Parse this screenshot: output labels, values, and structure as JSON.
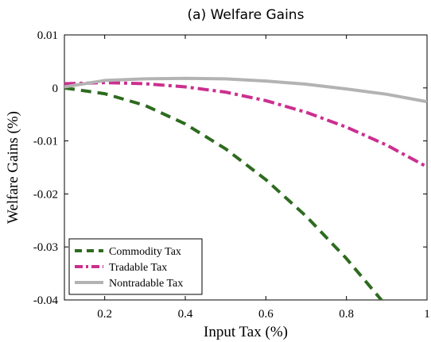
{
  "chart_data": {
    "type": "line",
    "title": "(a) Welfare Gains",
    "xlabel": "Input Tax (%)",
    "ylabel": "Welfare Gains (%)",
    "xlim": [
      0.1,
      1.0
    ],
    "ylim": [
      -0.04,
      0.01
    ],
    "xticks": [
      0.2,
      0.4,
      0.6,
      0.8,
      1.0
    ],
    "xtick_labels": [
      "0.2",
      "0.4",
      "0.6",
      "0.8",
      "1"
    ],
    "yticks": [
      0.01,
      0,
      -0.01,
      -0.02,
      -0.03,
      -0.04
    ],
    "ytick_labels": [
      "0.01",
      "0",
      "-0.01",
      "-0.02",
      "-0.03",
      "-0.04"
    ],
    "grid": false,
    "legend_position": "bottom-left",
    "series": [
      {
        "name": "Commodity Tax",
        "color": "#2e6b1f",
        "style": "dashed",
        "x": [
          0.1,
          0.2,
          0.3,
          0.4,
          0.5,
          0.6,
          0.7,
          0.8,
          0.9,
          0.92
        ],
        "y": [
          0.0,
          -0.0011,
          -0.0033,
          -0.0068,
          -0.0115,
          -0.0173,
          -0.0242,
          -0.0322,
          -0.0412,
          -0.0431
        ]
      },
      {
        "name": "Tradable Tax",
        "color": "#cc2f8f",
        "style": "dashdot",
        "x": [
          0.1,
          0.2,
          0.3,
          0.4,
          0.5,
          0.6,
          0.7,
          0.8,
          0.9,
          1.0
        ],
        "y": [
          0.0008,
          0.001,
          0.0008,
          0.0002,
          -0.0008,
          -0.0024,
          -0.0046,
          -0.0074,
          -0.0108,
          -0.0149
        ]
      },
      {
        "name": "Nontradable Tax",
        "color": "#b3b3b3",
        "style": "solid",
        "x": [
          0.1,
          0.2,
          0.3,
          0.4,
          0.5,
          0.6,
          0.7,
          0.8,
          0.9,
          1.0
        ],
        "y": [
          0.0002,
          0.0014,
          0.0017,
          0.0018,
          0.0017,
          0.0013,
          0.0007,
          -0.0002,
          -0.0012,
          -0.0026
        ]
      }
    ]
  }
}
